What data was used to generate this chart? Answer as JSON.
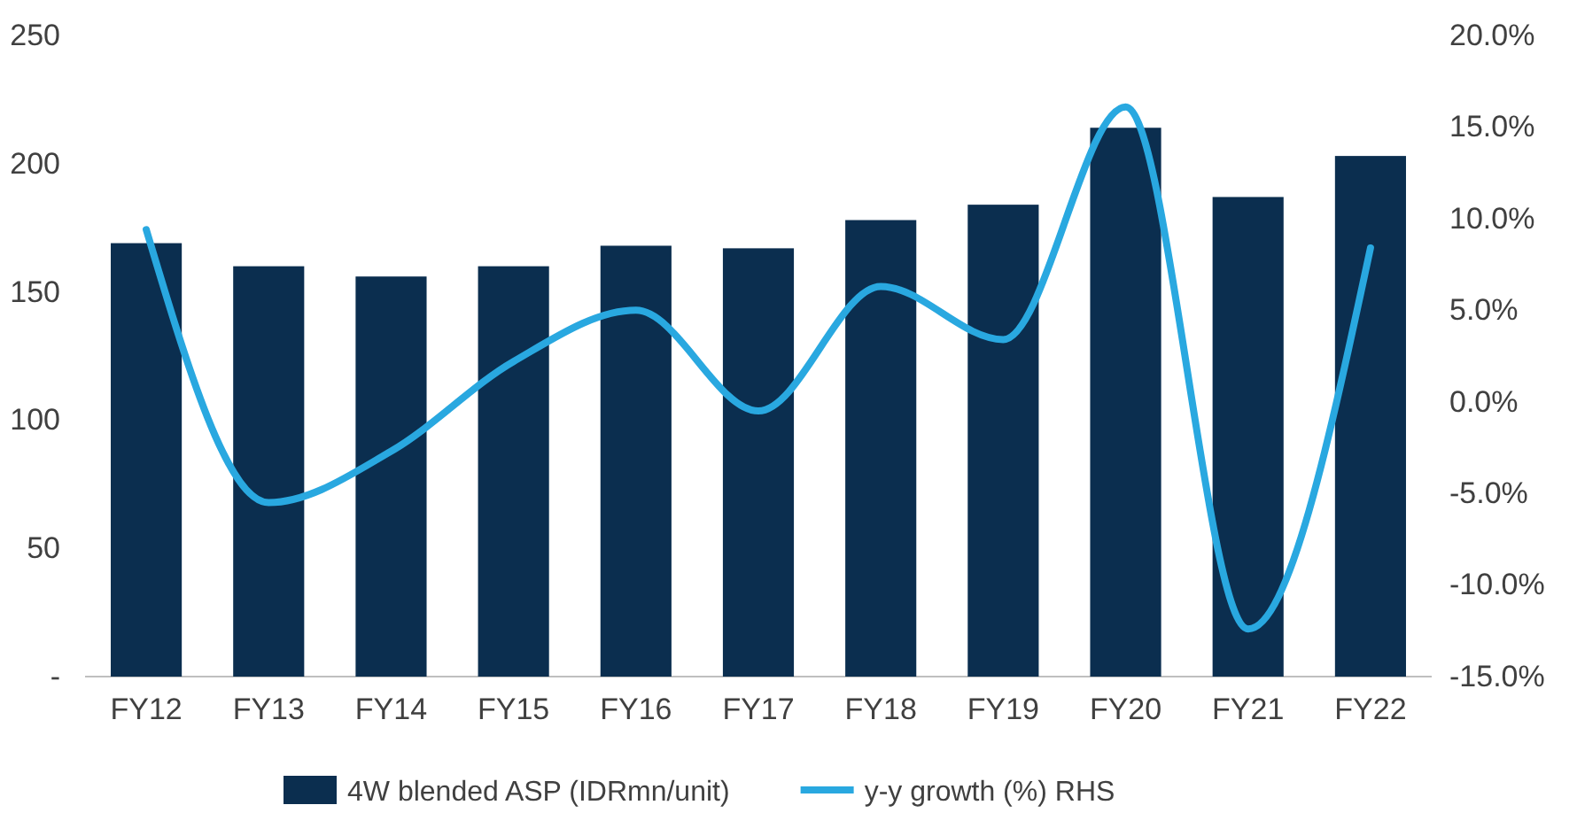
{
  "chart_data": {
    "type": "bar",
    "categories": [
      "FY12",
      "FY13",
      "FY14",
      "FY15",
      "FY16",
      "FY17",
      "FY18",
      "FY19",
      "FY20",
      "FY21",
      "FY22"
    ],
    "series": [
      {
        "name": "4W blended ASP (IDRmn/unit)",
        "color": "#0b2e4f",
        "values": [
          169,
          160,
          156,
          160,
          168,
          167,
          178,
          184,
          214,
          187,
          203
        ]
      },
      {
        "name": "y-y growth (%) RHS",
        "type": "line",
        "axis": "y2",
        "color": "#29a8e0",
        "values": [
          9.4,
          -5.5,
          -2.7,
          2.2,
          5.0,
          -0.5,
          6.3,
          3.4,
          16.1,
          -12.4,
          8.4
        ]
      }
    ],
    "ylim": [
      0,
      250
    ],
    "yticks": [
      {
        "value": 0,
        "label": "-"
      },
      50,
      100,
      150,
      200,
      250
    ],
    "y2lim": [
      -15,
      20
    ],
    "y2ticks": [
      {
        "value": -15,
        "label": "-15.0%"
      },
      {
        "value": -10,
        "label": "-10.0%"
      },
      {
        "value": -5,
        "label": "-5.0%"
      },
      {
        "value": 0,
        "label": "0.0%"
      },
      {
        "value": 5,
        "label": "5.0%"
      },
      {
        "value": 10,
        "label": "10.0%"
      },
      {
        "value": 15,
        "label": "15.0%"
      },
      {
        "value": 20,
        "label": "20.0%"
      }
    ],
    "legend": "bottom",
    "grid": false,
    "marker": "none",
    "line_style": "solid"
  }
}
